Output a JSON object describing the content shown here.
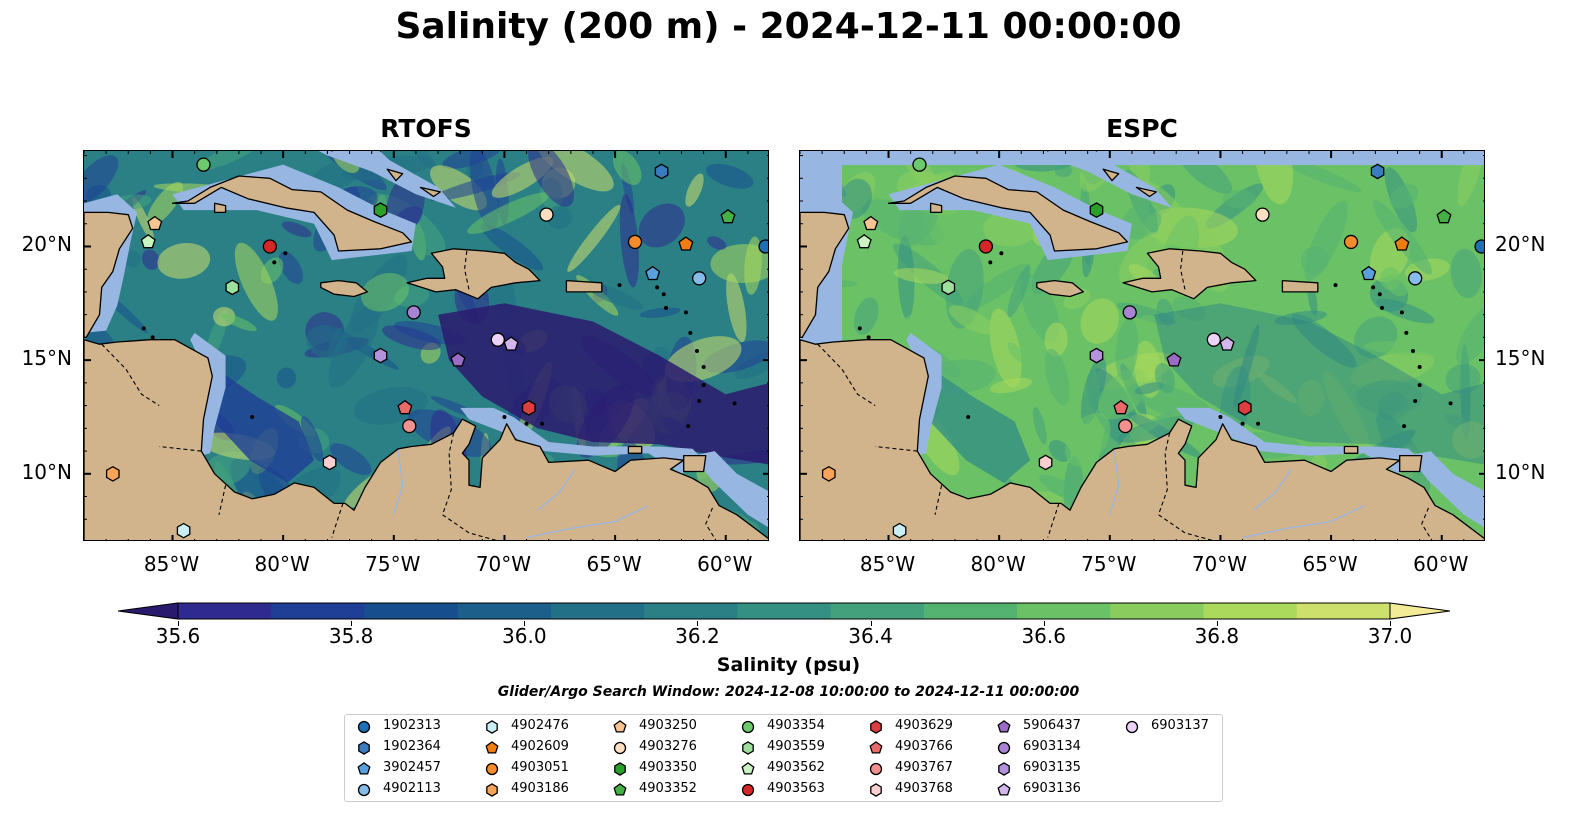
{
  "title": "Salinity (200 m) - 2024-12-11 00:00:00",
  "panels": [
    {
      "title": "RTOFS"
    },
    {
      "title": "ESPC"
    }
  ],
  "x_ticks": [
    "85°W",
    "80°W",
    "75°W",
    "70°W",
    "65°W",
    "60°W"
  ],
  "x_tick_lons": [
    -85,
    -80,
    -75,
    -70,
    -65,
    -60
  ],
  "y_ticks": [
    "20°N",
    "15°N",
    "10°N"
  ],
  "y_tick_lats": [
    20,
    15,
    10
  ],
  "extent": {
    "lon_min": -89,
    "lon_max": -58,
    "lat_min": 7,
    "lat_max": 24.2
  },
  "colorbar": {
    "label": "Salinity (psu)",
    "tick_labels": [
      "35.6",
      "35.8",
      "36.0",
      "36.2",
      "36.4",
      "36.6",
      "36.8",
      "37.0"
    ],
    "tick_values": [
      35.6,
      35.8,
      36.0,
      36.2,
      36.4,
      36.6,
      36.8,
      37.0
    ],
    "vmin": 35.6,
    "vmax": 37.0,
    "step": 0.1,
    "colors": [
      "#2a1a6e",
      "#2e2a8f",
      "#1f3f96",
      "#174f8e",
      "#1b5f8a",
      "#227087",
      "#2a8085",
      "#349083",
      "#43a27c",
      "#55b372",
      "#6bc266",
      "#8acd5e",
      "#aad95c",
      "#cde06b",
      "#f3eb96"
    ],
    "extend": "both"
  },
  "search_window": "Glider/Argo Search Window: 2024-12-08 10:00:00 to 2024-12-11 00:00:00",
  "legend": [
    {
      "label": "1902313",
      "marker": "circle",
      "color": "#1f6fb4"
    },
    {
      "label": "1902364",
      "marker": "hexagon",
      "color": "#3a7cbf"
    },
    {
      "label": "3902457",
      "marker": "pentagon",
      "color": "#5aa0dc"
    },
    {
      "label": "4902113",
      "marker": "circle",
      "color": "#86bde8"
    },
    {
      "label": "4902476",
      "marker": "hexagon",
      "color": "#c9eef4"
    },
    {
      "label": "4902609",
      "marker": "pentagon",
      "color": "#f07d12"
    },
    {
      "label": "4903051",
      "marker": "circle",
      "color": "#f58b2a"
    },
    {
      "label": "4903186",
      "marker": "hexagon",
      "color": "#f8a35a"
    },
    {
      "label": "4903250",
      "marker": "pentagon",
      "color": "#f8c592"
    },
    {
      "label": "4903276",
      "marker": "circle",
      "color": "#fde0c2"
    },
    {
      "label": "4903350",
      "marker": "hexagon",
      "color": "#2aa02a"
    },
    {
      "label": "4903352",
      "marker": "pentagon",
      "color": "#45b045"
    },
    {
      "label": "4903354",
      "marker": "circle",
      "color": "#6cc96c"
    },
    {
      "label": "4903559",
      "marker": "hexagon",
      "color": "#9ee09e"
    },
    {
      "label": "4903562",
      "marker": "pentagon",
      "color": "#c9f3c0"
    },
    {
      "label": "4903563",
      "marker": "circle",
      "color": "#d62728"
    },
    {
      "label": "4903629",
      "marker": "hexagon",
      "color": "#de3e3f"
    },
    {
      "label": "4903766",
      "marker": "pentagon",
      "color": "#ea6a6a"
    },
    {
      "label": "4903767",
      "marker": "circle",
      "color": "#f29090"
    },
    {
      "label": "4903768",
      "marker": "hexagon",
      "color": "#fbcfcf"
    },
    {
      "label": "5906437",
      "marker": "pentagon",
      "color": "#9b6cc5"
    },
    {
      "label": "6903134",
      "marker": "circle",
      "color": "#a883d1"
    },
    {
      "label": "6903135",
      "marker": "hexagon",
      "color": "#b592dc"
    },
    {
      "label": "6903136",
      "marker": "pentagon",
      "color": "#d2b6ec"
    },
    {
      "label": "6903137",
      "marker": "circle",
      "color": "#ecd2f7"
    }
  ],
  "floats": [
    {
      "label": "1902313",
      "lon": -58.2,
      "lat": 20.0
    },
    {
      "label": "1902364",
      "lon": -62.9,
      "lat": 23.3
    },
    {
      "label": "3902457",
      "lon": -63.3,
      "lat": 18.8
    },
    {
      "label": "4902113",
      "lon": -61.2,
      "lat": 18.6
    },
    {
      "label": "4902476",
      "lon": -84.5,
      "lat": 7.5
    },
    {
      "label": "4902609",
      "lon": -61.8,
      "lat": 20.1
    },
    {
      "label": "4903051",
      "lon": -64.1,
      "lat": 20.2
    },
    {
      "label": "4903186",
      "lon": -87.7,
      "lat": 10.0
    },
    {
      "label": "4903250",
      "lon": -85.8,
      "lat": 21.0
    },
    {
      "label": "4903276",
      "lon": -68.1,
      "lat": 21.4
    },
    {
      "label": "4903350",
      "lon": -75.6,
      "lat": 21.6
    },
    {
      "label": "4903352",
      "lon": -59.9,
      "lat": 21.3
    },
    {
      "label": "4903354",
      "lon": -83.6,
      "lat": 23.6
    },
    {
      "label": "4903559",
      "lon": -82.3,
      "lat": 18.2
    },
    {
      "label": "4903562",
      "lon": -86.1,
      "lat": 20.2
    },
    {
      "label": "4903563",
      "lon": -80.6,
      "lat": 20.0
    },
    {
      "label": "4903629",
      "lon": -68.9,
      "lat": 12.9
    },
    {
      "label": "4903766",
      "lon": -74.5,
      "lat": 12.9
    },
    {
      "label": "4903767",
      "lon": -74.3,
      "lat": 12.1
    },
    {
      "label": "4903768",
      "lon": -77.9,
      "lat": 10.5
    },
    {
      "label": "5906437",
      "lon": -72.1,
      "lat": 15.0
    },
    {
      "label": "6903134",
      "lon": -74.1,
      "lat": 17.1
    },
    {
      "label": "6903135",
      "lon": -75.6,
      "lat": 15.2
    },
    {
      "label": "6903136",
      "lon": -69.7,
      "lat": 15.7
    },
    {
      "label": "6903137",
      "lon": -70.3,
      "lat": 15.9
    }
  ]
}
